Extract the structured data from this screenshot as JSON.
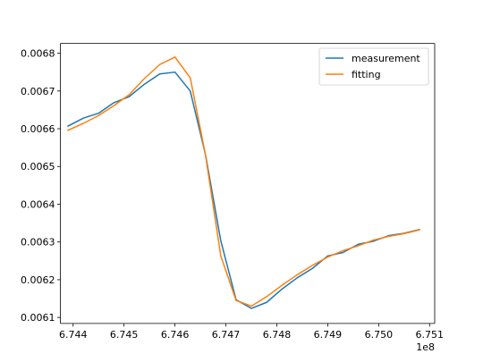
{
  "chart_data": {
    "type": "line",
    "title": "",
    "xlabel": "",
    "ylabel": "",
    "x_offset_label": "1e8",
    "x_multiplier": 100000000,
    "xlim": [
      6.74375,
      6.7511
    ],
    "ylim": [
      0.006084,
      0.006826
    ],
    "x_ticks": [
      6.744,
      6.745,
      6.746,
      6.747,
      6.748,
      6.749,
      6.75,
      6.751
    ],
    "x_tick_labels": [
      "6.744",
      "6.745",
      "6.746",
      "6.747",
      "6.748",
      "6.749",
      "6.750",
      "6.751"
    ],
    "y_ticks": [
      0.0061,
      0.0062,
      0.0063,
      0.0064,
      0.0065,
      0.0066,
      0.0067,
      0.0068
    ],
    "y_tick_labels": [
      "0.0061",
      "0.0062",
      "0.0063",
      "0.0064",
      "0.0065",
      "0.0066",
      "0.0067",
      "0.0068"
    ],
    "grid": false,
    "legend_position": "top-right",
    "series": [
      {
        "name": "measurement",
        "color": "#1f77b4",
        "x": [
          6.7439,
          6.7442,
          6.7445,
          6.7448,
          6.7451,
          6.7454,
          6.7457,
          6.746,
          6.7463,
          6.7466,
          6.7469,
          6.7472,
          6.7475,
          6.7478,
          6.7481,
          6.7484,
          6.7487,
          6.749,
          6.7493,
          6.7496,
          6.7499,
          6.7502,
          6.7505,
          6.7508
        ],
        "y": [
          0.006607,
          0.006628,
          0.006641,
          0.006669,
          0.006685,
          0.006718,
          0.006745,
          0.00675,
          0.0067,
          0.006531,
          0.006303,
          0.006147,
          0.006124,
          0.00614,
          0.006175,
          0.006205,
          0.00623,
          0.006263,
          0.006272,
          0.006294,
          0.006302,
          0.006317,
          0.006323,
          0.006333
        ]
      },
      {
        "name": "fitting",
        "color": "#ff7f0e",
        "x": [
          6.7439,
          6.7442,
          6.7445,
          6.7448,
          6.7451,
          6.7454,
          6.7457,
          6.746,
          6.7463,
          6.7466,
          6.7469,
          6.7472,
          6.7475,
          6.7478,
          6.7481,
          6.7484,
          6.7487,
          6.749,
          6.7493,
          6.7496,
          6.7499,
          6.7502,
          6.7505,
          6.7508
        ],
        "y": [
          0.006596,
          0.006614,
          0.006635,
          0.006661,
          0.00669,
          0.006733,
          0.00677,
          0.00679,
          0.006735,
          0.00653,
          0.006263,
          0.006145,
          0.00613,
          0.006155,
          0.006185,
          0.006213,
          0.006238,
          0.00626,
          0.006277,
          0.00629,
          0.006305,
          0.006315,
          0.006322,
          0.006332
        ]
      }
    ]
  }
}
